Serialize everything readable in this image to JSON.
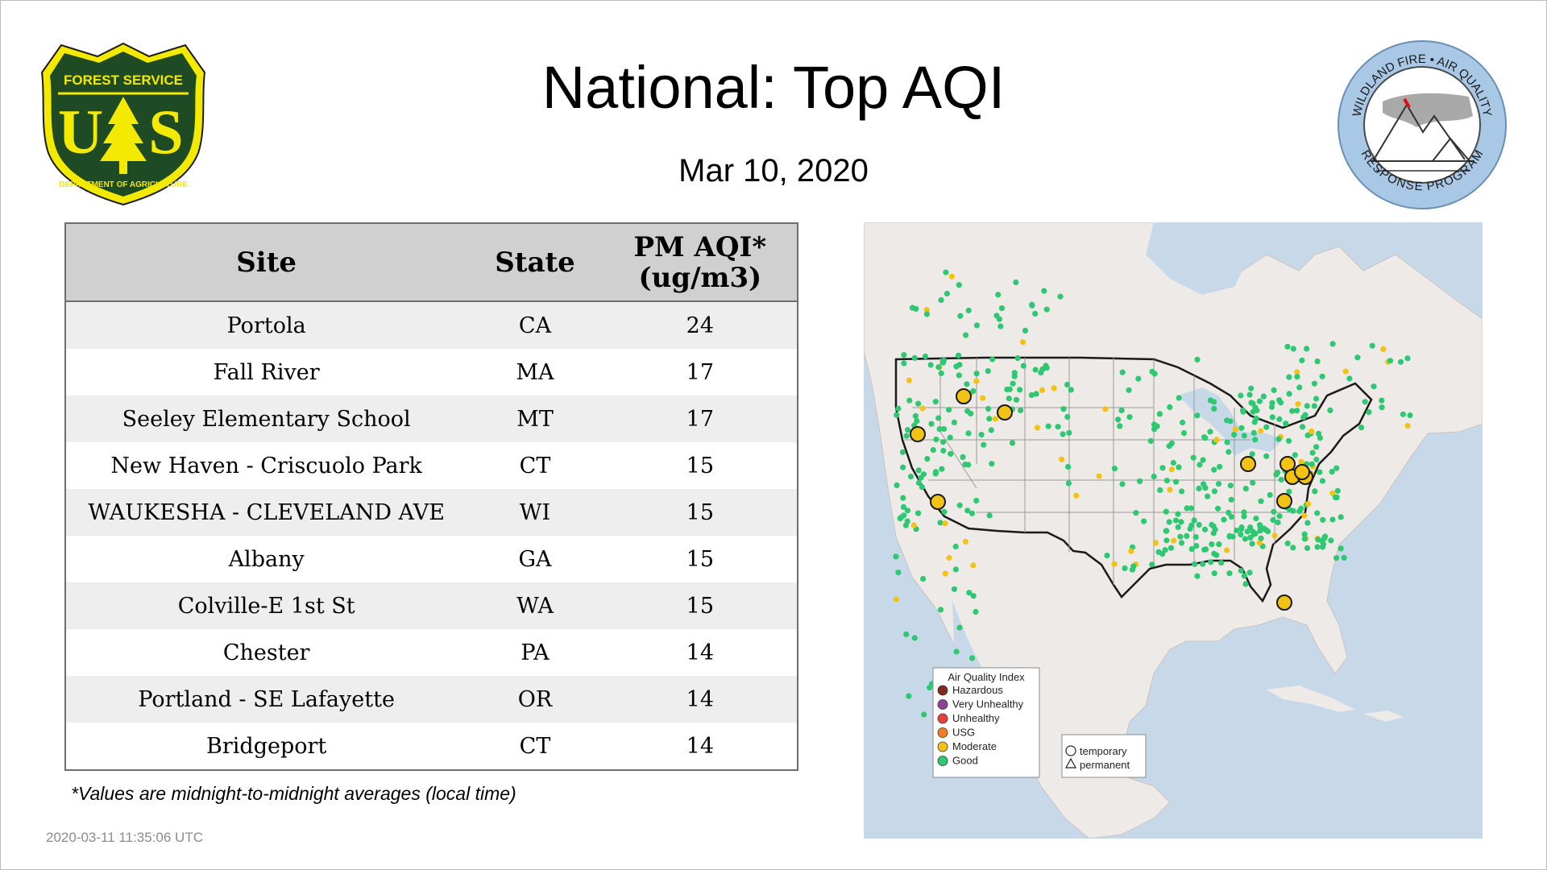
{
  "header": {
    "title": "National: Top AQI",
    "date": "Mar 10, 2020"
  },
  "logos": {
    "forest_service": {
      "top_text": "FOREST SERVICE",
      "letters_left": "U",
      "letters_right": "S",
      "bottom_text": "DEPARTMENT OF AGRICULTURE"
    },
    "wildland_fire": {
      "top_text": "WILDLAND FIRE • AIR QUALITY",
      "bottom_text": "RESPONSE PROGRAM"
    }
  },
  "table": {
    "headers": {
      "site": "Site",
      "state": "State",
      "aqi_line1": "PM AQI*",
      "aqi_line2": "(ug/m3)"
    },
    "rows": [
      {
        "site": "Portola",
        "state": "CA",
        "aqi": "24"
      },
      {
        "site": "Fall River",
        "state": "MA",
        "aqi": "17"
      },
      {
        "site": "Seeley Elementary School",
        "state": "MT",
        "aqi": "17"
      },
      {
        "site": "New Haven - Criscuolo Park",
        "state": "CT",
        "aqi": "15"
      },
      {
        "site": "WAUKESHA - CLEVELAND AVE",
        "state": "WI",
        "aqi": "15"
      },
      {
        "site": "Albany",
        "state": "GA",
        "aqi": "15"
      },
      {
        "site": "Colville-E 1st St",
        "state": "WA",
        "aqi": "15"
      },
      {
        "site": "Chester",
        "state": "PA",
        "aqi": "14"
      },
      {
        "site": "Portland - SE Lafayette",
        "state": "OR",
        "aqi": "14"
      },
      {
        "site": "Bridgeport",
        "state": "CT",
        "aqi": "14"
      }
    ]
  },
  "footnote": "*Values are midnight-to-midnight averages (local time)",
  "timestamp": "2020-03-11 11:35:06 UTC",
  "map": {
    "legend": {
      "title": "Air Quality Index",
      "items": [
        {
          "label": "Hazardous",
          "color": "#7e2a1f"
        },
        {
          "label": "Very Unhealthy",
          "color": "#8f3f97"
        },
        {
          "label": "Unhealthy",
          "color": "#e8403a"
        },
        {
          "label": "USG",
          "color": "#f07d20"
        },
        {
          "label": "Moderate",
          "color": "#f2c315"
        },
        {
          "label": "Good",
          "color": "#2ec872"
        }
      ]
    },
    "symbol_legend": {
      "circle": "temporary",
      "triangle": "permanent"
    }
  },
  "colors": {
    "good": "#2ec872",
    "moderate": "#f2c315",
    "water": "#c7d9e8",
    "land": "#eeeae7"
  }
}
